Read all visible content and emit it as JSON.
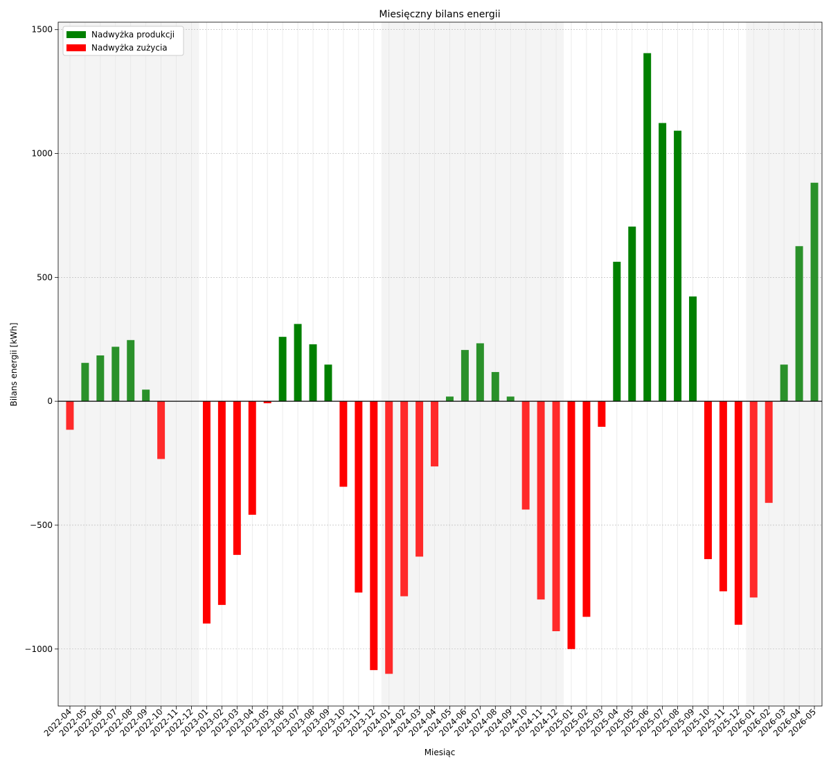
{
  "chart_data": {
    "type": "bar",
    "title": "Miesięczny bilans energii",
    "xlabel": "Miesiąc",
    "ylabel": "Bilans energii [kWh]",
    "ylim": [
      -1230,
      1530
    ],
    "yticks": [
      1500,
      1000,
      500,
      0,
      -500,
      -1000
    ],
    "ytick_labels": [
      "1500",
      "1000",
      "500",
      "0",
      "−500",
      "−1000"
    ],
    "legend_position": "top-left",
    "legend": [
      {
        "label": "Nadwyżka produkcji",
        "color": "#008000"
      },
      {
        "label": "Nadwyżka zużycia",
        "color": "#ff0000"
      }
    ],
    "colors": {
      "positive": "#008000",
      "positive_light": "#2a912a",
      "negative": "#ff0000",
      "negative_light": "#ff2a2a",
      "shade": "#f4f4f4"
    },
    "shaded_ranges": [
      [
        "2022-04",
        "2022-12"
      ],
      [
        "2024-01",
        "2024-12"
      ],
      [
        "2026-01",
        "2026-05"
      ]
    ],
    "categories": [
      "2022-04",
      "2022-05",
      "2022-06",
      "2022-07",
      "2022-08",
      "2022-09",
      "2022-10",
      "2022-11",
      "2022-12",
      "2023-01",
      "2023-02",
      "2023-03",
      "2023-04",
      "2023-05",
      "2023-06",
      "2023-07",
      "2023-08",
      "2023-09",
      "2023-10",
      "2023-11",
      "2023-12",
      "2024-01",
      "2024-02",
      "2024-03",
      "2024-04",
      "2024-05",
      "2024-06",
      "2024-07",
      "2024-08",
      "2024-09",
      "2024-10",
      "2024-11",
      "2024-12",
      "2025-01",
      "2025-02",
      "2025-03",
      "2025-04",
      "2025-05",
      "2025-06",
      "2025-07",
      "2025-08",
      "2025-09",
      "2025-10",
      "2025-11",
      "2025-12",
      "2026-01",
      "2026-02",
      "2026-03",
      "2026-04",
      "2026-05"
    ],
    "values": [
      -115,
      155,
      185,
      220,
      247,
      47,
      -233,
      0,
      0,
      -897,
      -822,
      -620,
      -458,
      -8,
      260,
      312,
      230,
      148,
      -345,
      -772,
      -1085,
      -1100,
      -787,
      -627,
      -263,
      19,
      207,
      234,
      118,
      19,
      -437,
      -800,
      -928,
      -1000,
      -870,
      -103,
      563,
      705,
      1405,
      1123,
      1092,
      423,
      -637,
      -767,
      -902,
      -792,
      -410,
      148,
      626,
      882
    ]
  }
}
